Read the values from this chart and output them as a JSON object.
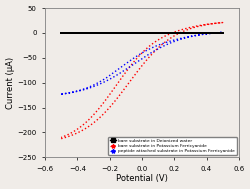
{
  "title": "",
  "xlabel": "Potential (V)",
  "ylabel": "Current (μA)",
  "xlim": [
    -0.6,
    0.6
  ],
  "ylim": [
    -250,
    50
  ],
  "yticks": [
    50,
    0,
    -50,
    -100,
    -150,
    -200,
    -250
  ],
  "xticks": [
    -0.6,
    -0.4,
    -0.2,
    0.0,
    0.2,
    0.4,
    0.6
  ],
  "legend": [
    {
      "label": "bare substrate in Deionized water",
      "color": "black",
      "linestyle": "-"
    },
    {
      "label": "bare substrate in Potassium Ferricyanide",
      "color": "red",
      "linestyle": ":"
    },
    {
      "label": "peptide attached substrate in Potassium Ferricyanide",
      "color": "blue",
      "linestyle": ":"
    }
  ],
  "bg_color": "#f0ece8"
}
